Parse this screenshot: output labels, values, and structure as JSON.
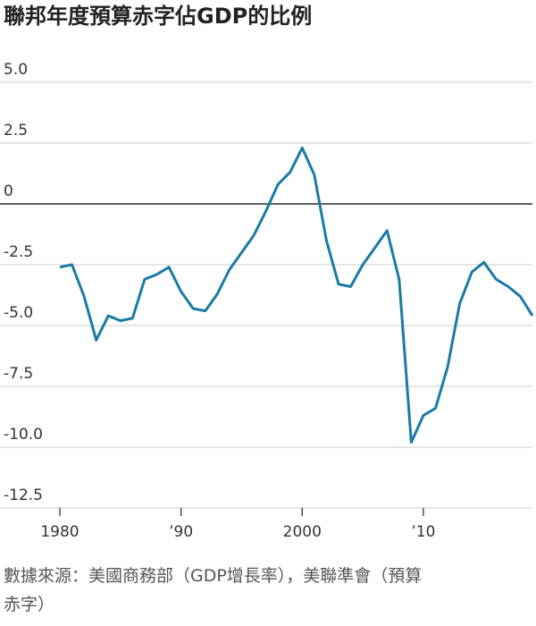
{
  "chart_data": {
    "type": "line",
    "title": "聯邦年度預算赤字佔GDP的比例",
    "source": "數據來源：美國商務部（GDP增長率），美聯準會（預算赤字）",
    "x": [
      1980,
      1981,
      1982,
      1983,
      1984,
      1985,
      1986,
      1987,
      1988,
      1989,
      1990,
      1991,
      1992,
      1993,
      1994,
      1995,
      1996,
      1997,
      1998,
      1999,
      2000,
      2001,
      2002,
      2003,
      2004,
      2005,
      2006,
      2007,
      2008,
      2009,
      2010,
      2011,
      2012,
      2013,
      2014,
      2015,
      2016,
      2017,
      2018,
      2019
    ],
    "series": [
      {
        "color": "#1a7ba6",
        "values": [
          -2.6,
          -2.5,
          -3.8,
          -5.6,
          -4.6,
          -4.8,
          -4.7,
          -3.1,
          -2.9,
          -2.6,
          -3.6,
          -4.3,
          -4.4,
          -3.7,
          -2.7,
          -2.0,
          -1.3,
          -0.3,
          0.8,
          1.3,
          2.3,
          1.2,
          -1.5,
          -3.3,
          -3.4,
          -2.5,
          -1.8,
          -1.1,
          -3.1,
          -9.8,
          -8.7,
          -8.4,
          -6.7,
          -4.1,
          -2.8,
          -2.4,
          -3.1,
          -3.4,
          -3.8,
          -4.6
        ]
      }
    ],
    "xlim": [
      1980,
      2019
    ],
    "xticks": [
      1980,
      {
        "value": 1990,
        "label": "’90"
      },
      2000,
      {
        "value": 2010,
        "label": "’10"
      }
    ],
    "ylim": [
      -12.5,
      5.0
    ],
    "yticks": [
      {
        "value": 5.0,
        "label": "5.0"
      },
      2.5,
      0,
      -2.5,
      {
        "value": -5.0,
        "label": "-5.0"
      },
      -7.5,
      {
        "value": -10.0,
        "label": "-10.0"
      },
      -12.5
    ],
    "grid": true
  }
}
